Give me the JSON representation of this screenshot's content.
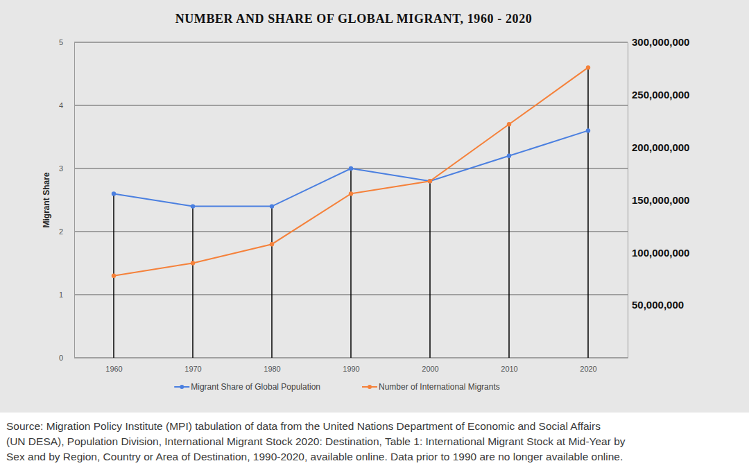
{
  "chart_data": {
    "type": "line",
    "title": "NUMBER AND SHARE OF GLOBAL MIGRANT, 1960 - 2020",
    "y_label": "Migrant Share",
    "categories": [
      "1960",
      "1970",
      "1980",
      "1990",
      "2000",
      "2010",
      "2020"
    ],
    "series": [
      {
        "name": "Migrant Share of Global Population",
        "color": "#4a7fe0",
        "axis": "y",
        "marker": "circle",
        "values": [
          2.6,
          2.4,
          2.4,
          3.0,
          2.8,
          3.2,
          3.6
        ]
      },
      {
        "name": "Number of International Migrants",
        "color": "#f5813a",
        "axis": "y2",
        "marker": "circle",
        "values": [
          78000000,
          90000000,
          108000000,
          156000000,
          168000000,
          222000000,
          276000000
        ]
      }
    ],
    "ylim": [
      0,
      5
    ],
    "yticks": [
      0,
      1,
      2,
      3,
      4,
      5
    ],
    "y2lim": [
      0,
      300000000
    ],
    "y2ticks": [
      {
        "value": 50000000,
        "label": "50,000,000"
      },
      {
        "value": 100000000,
        "label": "100,000,000"
      },
      {
        "value": 150000000,
        "label": "150,000,000"
      },
      {
        "value": 200000000,
        "label": "200,000,000"
      },
      {
        "value": 250000000,
        "label": "250,000,000"
      },
      {
        "value": 300000000,
        "label": "300,000,000"
      }
    ],
    "grid": true,
    "legend": "bottom",
    "source": [
      "Source: Migration Policy Institute (MPI) tabulation of data from the United Nations Department of Economic and Social Affairs",
      "(UN DESA), Population Division, International Migrant Stock 2020: Destination, Table 1: International Migrant Stock at Mid-Year by",
      "Sex and by Region, Country or Area of Destination, 1990-2020, available online. Data prior to 1990 are no longer available online."
    ]
  }
}
